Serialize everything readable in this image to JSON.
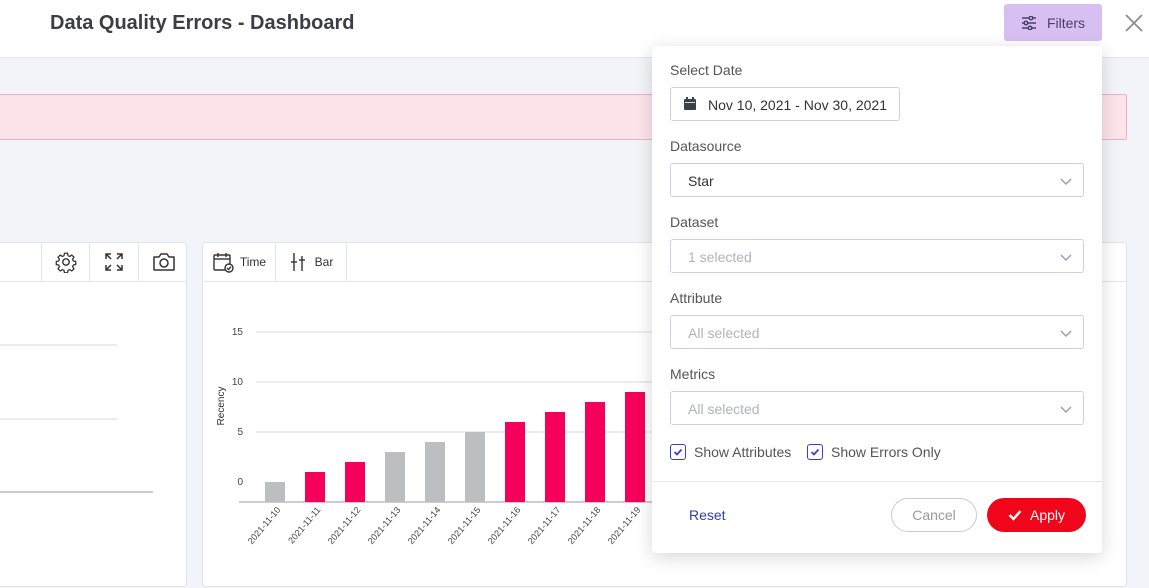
{
  "header": {
    "title": "Data Quality Errors - Dashboard",
    "filters_label": "Filters"
  },
  "colors": {
    "accent_red": "#f0051a",
    "bar_error": "#f5005a",
    "bar_ok": "#bdbec2",
    "filters_bg": "#d7bff3",
    "checkbox": "#3d3ad6"
  },
  "toolbar": {
    "time_label": "Time",
    "bar_label": "Bar",
    "icons": [
      "gear-icon",
      "expand-icon",
      "camera-icon",
      "calendar-check-icon",
      "bar-chart-icon"
    ]
  },
  "chart_data": {
    "type": "bar",
    "ylabel": "Recency",
    "ylim": [
      -2,
      16
    ],
    "yticks": [
      0,
      5,
      10,
      15
    ],
    "categories": [
      "2021-11-10",
      "2021-11-11",
      "2021-11-12",
      "2021-11-13",
      "2021-11-14",
      "2021-11-15",
      "2021-11-16",
      "2021-11-17",
      "2021-11-18",
      "2021-11-19"
    ],
    "values": [
      0,
      1,
      2,
      3,
      4,
      5,
      6,
      7,
      8,
      9
    ],
    "error": [
      false,
      true,
      true,
      false,
      false,
      false,
      true,
      true,
      true,
      true
    ]
  },
  "filters": {
    "date_label": "Select Date",
    "date_value": "Nov 10, 2021 - Nov 30, 2021",
    "datasource_label": "Datasource",
    "datasource_value": "Star",
    "dataset_label": "Dataset",
    "dataset_placeholder": "1 selected",
    "attribute_label": "Attribute",
    "attribute_placeholder": "All selected",
    "metrics_label": "Metrics",
    "metrics_placeholder": "All selected",
    "show_attributes_label": "Show Attributes",
    "show_errors_label": "Show Errors Only",
    "show_attributes_checked": true,
    "show_errors_checked": true,
    "reset_label": "Reset",
    "cancel_label": "Cancel",
    "apply_label": "Apply"
  }
}
